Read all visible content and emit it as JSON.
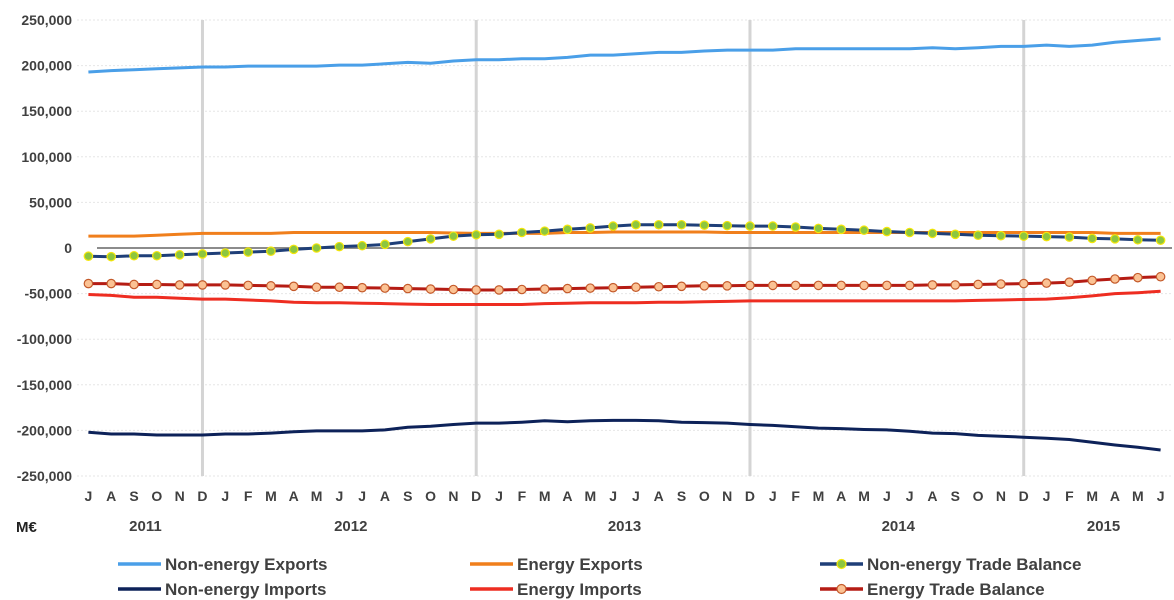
{
  "chart_data": {
    "type": "line",
    "unit_label": "M€",
    "x": [
      "J",
      "A",
      "S",
      "O",
      "N",
      "D",
      "J",
      "F",
      "M",
      "A",
      "M",
      "J",
      "J",
      "A",
      "S",
      "O",
      "N",
      "D",
      "J",
      "F",
      "M",
      "A",
      "M",
      "J",
      "J",
      "A",
      "S",
      "O",
      "N",
      "D",
      "J",
      "F",
      "M",
      "A",
      "M",
      "J",
      "J",
      "A",
      "S",
      "O",
      "N",
      "D",
      "J",
      "F",
      "M",
      "A",
      "M",
      "J"
    ],
    "years": [
      {
        "label": "2011",
        "from": 0,
        "to": 5
      },
      {
        "label": "2012",
        "from": 6,
        "to": 17
      },
      {
        "label": "2013",
        "from": 18,
        "to": 29
      },
      {
        "label": "2014",
        "from": 30,
        "to": 41
      },
      {
        "label": "2015",
        "from": 42,
        "to": 47
      }
    ],
    "year_separators_after": [
      5,
      17,
      29,
      41
    ],
    "ylim": [
      -250000,
      250000
    ],
    "yticks": [
      250000,
      200000,
      150000,
      100000,
      50000,
      0,
      -50000,
      -100000,
      -150000,
      -200000,
      -250000
    ],
    "ytick_labels": [
      "250,000",
      "200,000",
      "150,000",
      "100,000",
      "50,000",
      "0",
      "-50,000",
      "-100,000",
      "-150,000",
      "-200,000",
      "-250,000"
    ],
    "grid": true,
    "legend_position": "bottom",
    "series": [
      {
        "name": "Non-energy Exports",
        "color": "#4a9fe8",
        "marker": false,
        "values": [
          193000,
          194500,
          195500,
          196500,
          197500,
          198500,
          198500,
          199500,
          199500,
          199500,
          199500,
          200500,
          200500,
          202000,
          203500,
          202500,
          205000,
          206500,
          206500,
          207500,
          207500,
          209000,
          211500,
          211500,
          213000,
          214500,
          214500,
          216000,
          217000,
          217000,
          217000,
          218500,
          218500,
          218500,
          218500,
          218500,
          218500,
          219500,
          218500,
          219500,
          221000,
          221000,
          222500,
          221000,
          222500,
          225500,
          227500,
          229500
        ]
      },
      {
        "name": "Non-energy Imports",
        "color": "#0d2259",
        "marker": false,
        "values": [
          -202000,
          -204000,
          -204000,
          -205000,
          -205000,
          -205000,
          -204000,
          -204000,
          -203000,
          -201500,
          -200500,
          -200500,
          -200500,
          -199500,
          -196500,
          -195500,
          -193500,
          -192000,
          -192000,
          -191000,
          -189500,
          -190500,
          -189500,
          -189000,
          -189000,
          -189500,
          -191000,
          -191500,
          -192000,
          -193500,
          -194500,
          -196000,
          -197500,
          -198000,
          -199000,
          -199500,
          -201000,
          -203000,
          -203500,
          -205500,
          -206500,
          -207500,
          -208500,
          -210000,
          -213000,
          -216000,
          -218500,
          -221500
        ]
      },
      {
        "name": "Energy Exports",
        "color": "#f07f1c",
        "marker": false,
        "values": [
          13000,
          13000,
          13000,
          14000,
          15000,
          16000,
          16000,
          16000,
          16000,
          17000,
          17000,
          17000,
          17000,
          17000,
          17000,
          17000,
          16500,
          16000,
          16000,
          16000,
          16000,
          17000,
          17000,
          17500,
          17500,
          17500,
          17500,
          17500,
          17000,
          17000,
          17000,
          17000,
          17000,
          17000,
          17000,
          17000,
          17000,
          17000,
          17000,
          17000,
          17000,
          17000,
          17000,
          17000,
          17000,
          16000,
          16000,
          16000
        ]
      },
      {
        "name": "Energy Imports",
        "color": "#ee2d21",
        "marker": false,
        "values": [
          -51000,
          -52000,
          -54000,
          -54000,
          -55000,
          -56000,
          -56000,
          -57000,
          -58000,
          -59500,
          -60000,
          -60000,
          -60500,
          -61000,
          -61500,
          -62000,
          -62000,
          -62000,
          -62000,
          -62000,
          -61000,
          -60500,
          -60000,
          -60000,
          -60000,
          -59500,
          -59500,
          -59000,
          -58500,
          -58000,
          -58000,
          -58000,
          -58000,
          -58000,
          -58000,
          -58000,
          -58000,
          -58000,
          -58000,
          -57500,
          -57000,
          -56500,
          -56000,
          -54500,
          -52500,
          -50000,
          -49000,
          -47500
        ]
      },
      {
        "name": "Non-energy Trade Balance",
        "color": "#1f3f78",
        "marker": true,
        "marker_fill": "#8dc63f",
        "marker_stroke": "#f5e60a",
        "values": [
          -9000,
          -9500,
          -8500,
          -8500,
          -7500,
          -6500,
          -5500,
          -4500,
          -3500,
          -1500,
          0,
          1500,
          2500,
          4000,
          7000,
          10000,
          13000,
          14500,
          15000,
          17000,
          18500,
          20500,
          22000,
          24000,
          25500,
          25500,
          25500,
          25000,
          24500,
          24000,
          24000,
          23000,
          21500,
          20500,
          19500,
          18000,
          17000,
          16000,
          15000,
          14000,
          13500,
          13000,
          12500,
          12000,
          10500,
          10000,
          9000,
          8500
        ]
      },
      {
        "name": "Energy Trade Balance",
        "color": "#b51c14",
        "marker": true,
        "marker_fill": "#fbc294",
        "marker_stroke": "#c45a2a",
        "values": [
          -39000,
          -39000,
          -40000,
          -40000,
          -40500,
          -40500,
          -40500,
          -41000,
          -41500,
          -42000,
          -43000,
          -43000,
          -43500,
          -44000,
          -44500,
          -45000,
          -45500,
          -46000,
          -46000,
          -45500,
          -45000,
          -44500,
          -44000,
          -43500,
          -43000,
          -42500,
          -42000,
          -41500,
          -41500,
          -41000,
          -41000,
          -41000,
          -41000,
          -41000,
          -41000,
          -41000,
          -41000,
          -40500,
          -40500,
          -40000,
          -39500,
          -39000,
          -38500,
          -37500,
          -35500,
          -34000,
          -32500,
          -31500
        ]
      }
    ]
  }
}
